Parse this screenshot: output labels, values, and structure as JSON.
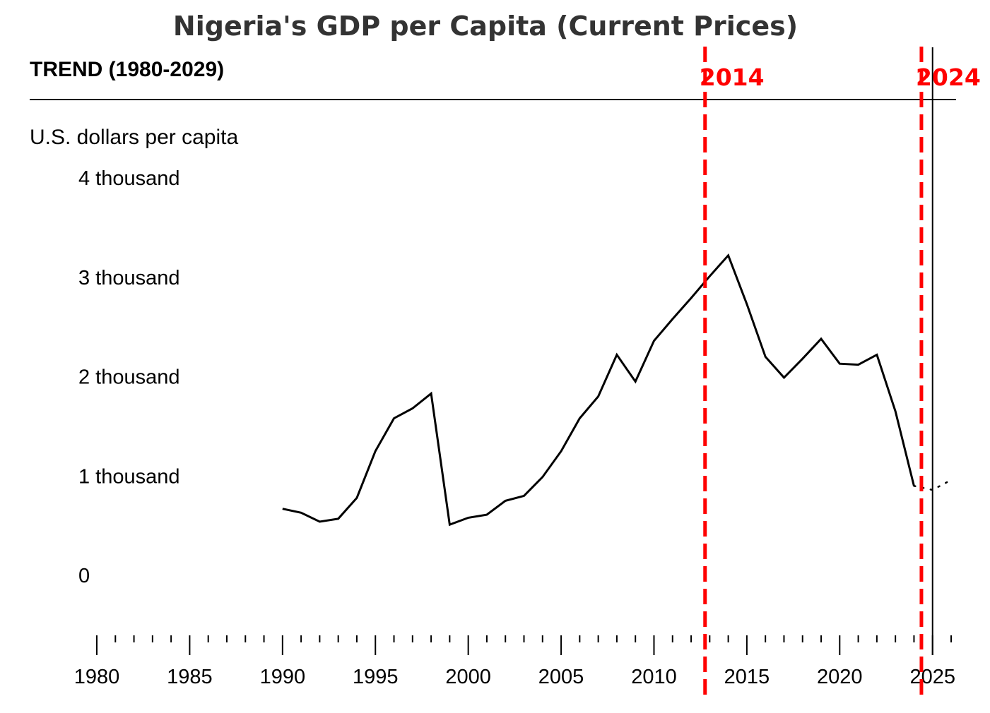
{
  "chart_data": {
    "type": "line",
    "title": "Nigeria's GDP per Capita (Current Prices)",
    "subtitle": "TREND (1980-2029)",
    "ylabel": "U.S. dollars per capita",
    "xlim": [
      1980,
      2026
    ],
    "ylim": [
      0,
      4000
    ],
    "y_ticks": [
      {
        "value": 4000,
        "label": "4 thousand"
      },
      {
        "value": 3000,
        "label": "3 thousand"
      },
      {
        "value": 2000,
        "label": "2 thousand"
      },
      {
        "value": 1000,
        "label": "1 thousand"
      },
      {
        "value": 0,
        "label": "0"
      }
    ],
    "x_ticks": [
      1980,
      1985,
      1990,
      1995,
      2000,
      2005,
      2010,
      2015,
      2020,
      2025
    ],
    "grid": false,
    "series": [
      {
        "style": "solid",
        "color": "#000000",
        "x": [
          1990,
          1991,
          1992,
          1993,
          1994,
          1995,
          1996,
          1997,
          1998,
          1999,
          2000,
          2001,
          2002,
          2003,
          2004,
          2005,
          2006,
          2007,
          2008,
          2009,
          2010,
          2011,
          2012,
          2013,
          2014,
          2015,
          2016,
          2017,
          2018,
          2019,
          2020,
          2021,
          2022,
          2023,
          2024
        ],
        "y": [
          670,
          630,
          540,
          570,
          780,
          1250,
          1580,
          1680,
          1830,
          510,
          580,
          610,
          750,
          800,
          990,
          1250,
          1580,
          1800,
          2220,
          1950,
          2360,
          2580,
          2790,
          3010,
          3220,
          2730,
          2200,
          1990,
          2180,
          2380,
          2130,
          2120,
          2220,
          1650,
          900
        ]
      },
      {
        "style": "dotted",
        "color": "#000000",
        "x": [
          2024,
          2025,
          2026
        ],
        "y": [
          900,
          860,
          960
        ]
      }
    ],
    "markers": [
      {
        "label": "2014",
        "x": 2012.75,
        "color": "#ff0000"
      },
      {
        "label": "2024",
        "x": 2024.4,
        "color": "#ff0000"
      }
    ],
    "current_year_line": 2025
  }
}
